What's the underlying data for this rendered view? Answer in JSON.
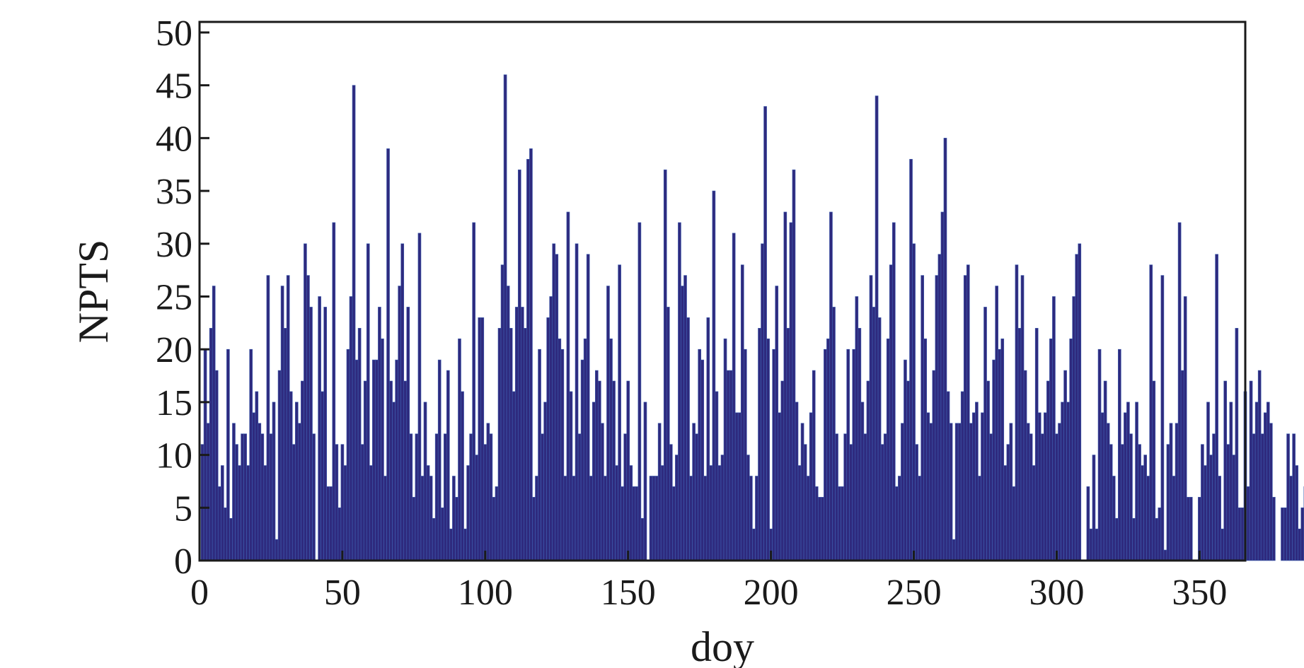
{
  "chart_data": {
    "type": "bar",
    "title": "",
    "xlabel": "doy",
    "ylabel": "NPTS",
    "xlim": [
      0,
      366
    ],
    "ylim": [
      0,
      51
    ],
    "x_ticks": [
      0,
      50,
      100,
      150,
      200,
      250,
      300,
      350
    ],
    "y_ticks": [
      0,
      5,
      10,
      15,
      20,
      25,
      30,
      35,
      40,
      45,
      50
    ],
    "grid": false,
    "legend": "none",
    "bar_color": "#2e2a7e",
    "x_start": 1,
    "values": [
      11,
      20,
      13,
      22,
      26,
      18,
      7,
      9,
      5,
      20,
      4,
      13,
      11,
      9,
      12,
      12,
      9,
      20,
      14,
      16,
      13,
      12,
      9,
      27,
      12,
      15,
      2,
      18,
      26,
      22,
      27,
      16,
      11,
      15,
      13,
      17,
      30,
      27,
      24,
      12,
      0,
      25,
      16,
      24,
      7,
      7,
      32,
      11,
      5,
      11,
      9,
      20,
      25,
      45,
      19,
      22,
      11,
      17,
      30,
      9,
      19,
      19,
      24,
      21,
      8,
      39,
      17,
      15,
      19,
      26,
      30,
      17,
      24,
      12,
      6,
      12,
      31,
      8,
      15,
      9,
      8,
      4,
      12,
      19,
      5,
      12,
      18,
      3,
      8,
      6,
      21,
      16,
      3,
      9,
      12,
      32,
      10,
      23,
      23,
      11,
      13,
      12,
      6,
      7,
      22,
      28,
      46,
      26,
      22,
      16,
      24,
      37,
      24,
      22,
      38,
      39,
      6,
      8,
      20,
      12,
      15,
      23,
      25,
      30,
      29,
      21,
      20,
      8,
      33,
      16,
      8,
      30,
      12,
      19,
      21,
      29,
      8,
      15,
      18,
      17,
      13,
      8,
      26,
      21,
      17,
      9,
      28,
      7,
      12,
      17,
      9,
      7,
      7,
      32,
      4,
      15,
      0,
      8,
      8,
      8,
      13,
      9,
      37,
      24,
      11,
      7,
      10,
      32,
      26,
      27,
      23,
      8,
      13,
      12,
      20,
      19,
      8,
      23,
      9,
      35,
      16,
      9,
      10,
      21,
      18,
      18,
      31,
      14,
      14,
      28,
      20,
      10,
      8,
      3,
      8,
      22,
      30,
      43,
      21,
      3,
      20,
      26,
      14,
      17,
      33,
      22,
      32,
      37,
      15,
      9,
      13,
      11,
      8,
      14,
      18,
      7,
      6,
      6,
      20,
      21,
      33,
      24,
      12,
      7,
      7,
      12,
      20,
      11,
      20,
      25,
      22,
      15,
      12,
      17,
      27,
      24,
      44,
      23,
      11,
      12,
      21,
      28,
      32,
      7,
      8,
      13,
      19,
      17,
      38,
      30,
      11,
      8,
      27,
      21,
      14,
      13,
      18,
      27,
      29,
      33,
      40,
      16,
      13,
      2,
      13,
      13,
      16,
      27,
      28,
      13,
      14,
      15,
      8,
      14,
      24,
      17,
      12,
      19,
      26,
      20,
      21,
      9,
      11,
      13,
      7,
      28,
      22,
      27,
      18,
      13,
      12,
      9,
      22,
      14,
      12,
      14,
      17,
      21,
      25,
      12,
      13,
      15,
      18,
      15,
      21,
      25,
      29,
      30,
      0,
      0,
      7,
      3,
      10,
      3,
      20,
      14,
      17,
      13,
      11,
      8,
      4,
      20,
      11,
      14,
      15,
      12,
      4,
      15,
      11,
      9,
      10,
      8,
      28,
      17,
      4,
      5,
      27,
      1,
      11,
      13,
      8,
      13,
      32,
      18,
      25,
      6,
      6,
      0,
      0,
      6,
      11,
      9,
      15,
      10,
      12,
      29,
      8,
      3,
      17,
      11,
      15,
      10,
      22,
      5,
      5,
      16,
      7,
      17,
      12,
      15,
      18,
      12,
      14,
      15,
      13,
      6,
      0,
      0,
      5,
      5,
      12,
      8,
      12,
      9,
      3,
      5,
      7
    ]
  }
}
